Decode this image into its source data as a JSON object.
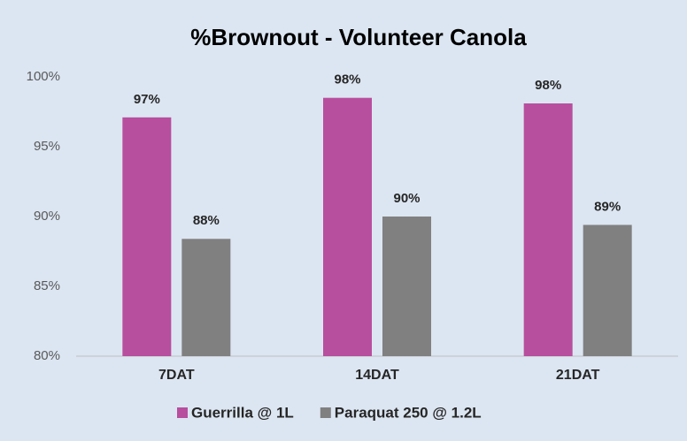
{
  "chart_data": {
    "type": "bar",
    "title": "%Brownout - Volunteer Canola",
    "categories": [
      "7DAT",
      "14DAT",
      "21DAT"
    ],
    "series": [
      {
        "name": "Guerrilla @ 1L",
        "color": "#b84e9e",
        "values": [
          97.1,
          98.5,
          98.1
        ],
        "value_labels": [
          "97%",
          "98%",
          "98%"
        ]
      },
      {
        "name": "Paraquat 250 @ 1.2L",
        "color": "#808080",
        "values": [
          88.4,
          90,
          89.4
        ],
        "value_labels": [
          "88%",
          "90%",
          "89%"
        ]
      }
    ],
    "ylim": [
      80,
      100
    ],
    "yticks": [
      {
        "value": 80,
        "label": "80%"
      },
      {
        "value": 85,
        "label": "85%"
      },
      {
        "value": 90,
        "label": "90%"
      },
      {
        "value": 95,
        "label": "95%"
      },
      {
        "value": 100,
        "label": "100%"
      }
    ],
    "grid": false,
    "legend": "bottom"
  }
}
